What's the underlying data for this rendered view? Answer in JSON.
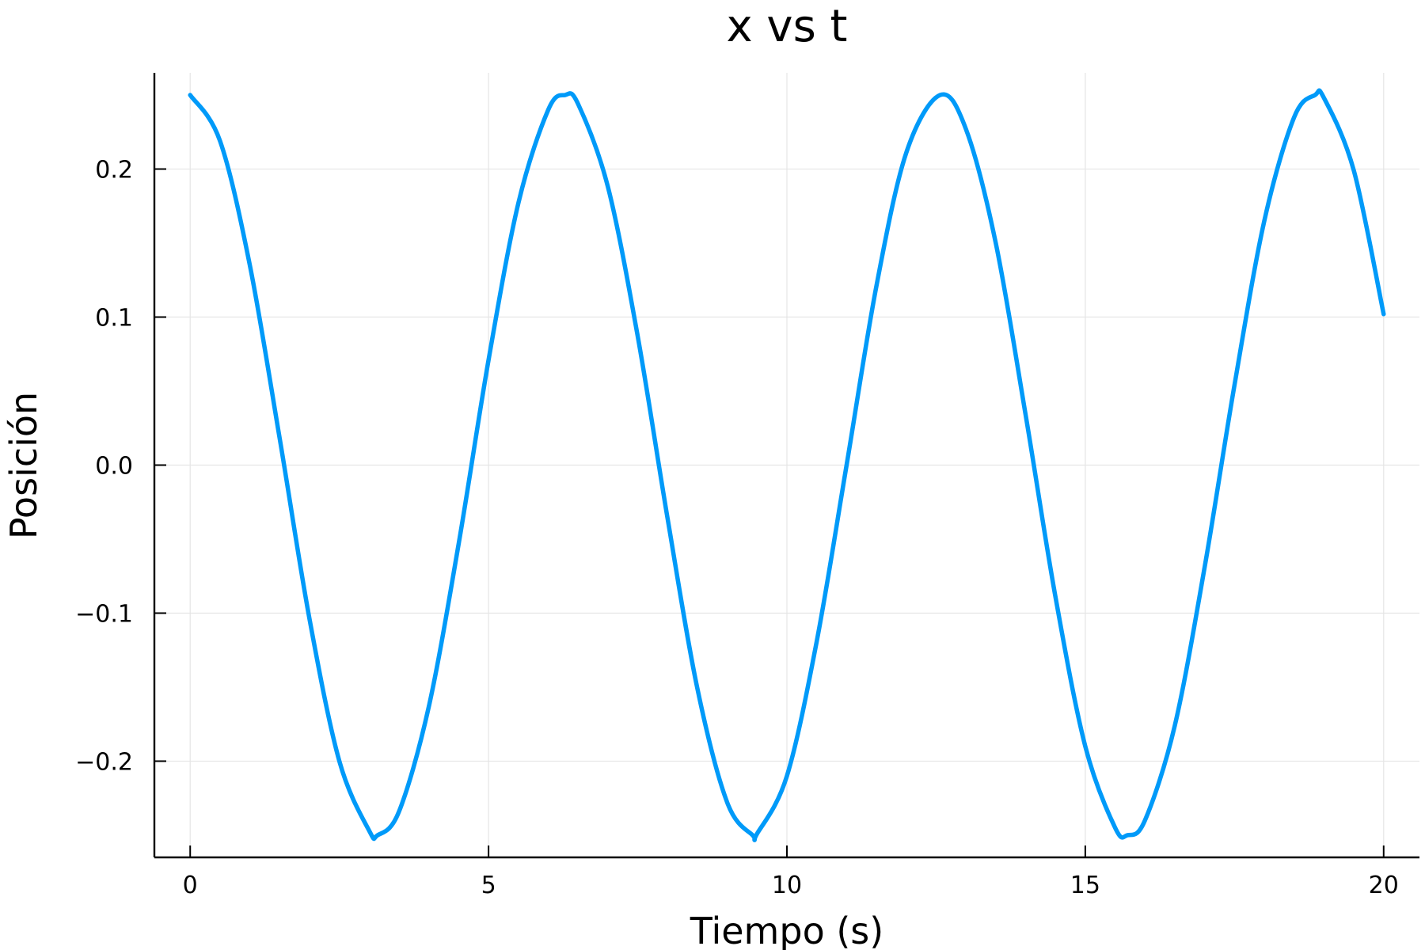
{
  "chart_data": {
    "type": "line",
    "title": "x vs t",
    "xlabel": "Tiempo (s)",
    "ylabel": "Posición",
    "xlim": [
      -0.6,
      20.6
    ],
    "ylim": [
      -0.265,
      0.265
    ],
    "x_ticks": [
      {
        "value": 0,
        "label": "0"
      },
      {
        "value": 5,
        "label": "5"
      },
      {
        "value": 10,
        "label": "10"
      },
      {
        "value": 15,
        "label": "15"
      },
      {
        "value": 20,
        "label": "20"
      }
    ],
    "y_ticks": [
      {
        "value": -0.2,
        "label": "−0.2"
      },
      {
        "value": -0.1,
        "label": "−0.1"
      },
      {
        "value": 0.0,
        "label": "0.0"
      },
      {
        "value": 0.1,
        "label": "0.1"
      },
      {
        "value": 0.2,
        "label": "0.2"
      }
    ],
    "grid": true,
    "legend": "none",
    "series": [
      {
        "color": "#009af9",
        "points": [
          [
            0.0,
            0.25
          ],
          [
            0.5,
            0.219
          ],
          [
            1.0,
            0.135
          ],
          [
            1.5,
            0.018
          ],
          [
            2.0,
            -0.104
          ],
          [
            2.5,
            -0.2
          ],
          [
            3.0,
            -0.247
          ],
          [
            3.1416,
            -0.25
          ],
          [
            3.5,
            -0.234
          ],
          [
            4.0,
            -0.163
          ],
          [
            4.5,
            -0.053
          ],
          [
            5.0,
            0.071
          ],
          [
            5.5,
            0.177
          ],
          [
            6.0,
            0.24
          ],
          [
            6.2832,
            0.25
          ],
          [
            6.5,
            0.244
          ],
          [
            7.0,
            0.188
          ],
          [
            7.5,
            0.087
          ],
          [
            8.0,
            -0.036
          ],
          [
            8.5,
            -0.151
          ],
          [
            9.0,
            -0.228
          ],
          [
            9.4248,
            -0.25
          ],
          [
            9.5,
            -0.249
          ],
          [
            10.0,
            -0.21
          ],
          [
            10.5,
            -0.119
          ],
          [
            11.0,
            0.0
          ],
          [
            11.5,
            0.121
          ],
          [
            12.0,
            0.211
          ],
          [
            12.5664,
            0.25
          ],
          [
            13.0,
            0.227
          ],
          [
            13.5,
            0.15
          ],
          [
            14.0,
            0.034
          ],
          [
            14.5,
            -0.089
          ],
          [
            15.0,
            -0.19
          ],
          [
            15.5,
            -0.245
          ],
          [
            15.708,
            -0.25
          ],
          [
            16.0,
            -0.24
          ],
          [
            16.5,
            -0.176
          ],
          [
            17.0,
            -0.069
          ],
          [
            17.5,
            0.054
          ],
          [
            18.0,
            0.165
          ],
          [
            18.5,
            0.235
          ],
          [
            18.8496,
            0.25
          ],
          [
            19.0,
            0.248
          ],
          [
            19.5,
            0.199
          ],
          [
            20.0,
            0.102
          ]
        ]
      }
    ]
  }
}
